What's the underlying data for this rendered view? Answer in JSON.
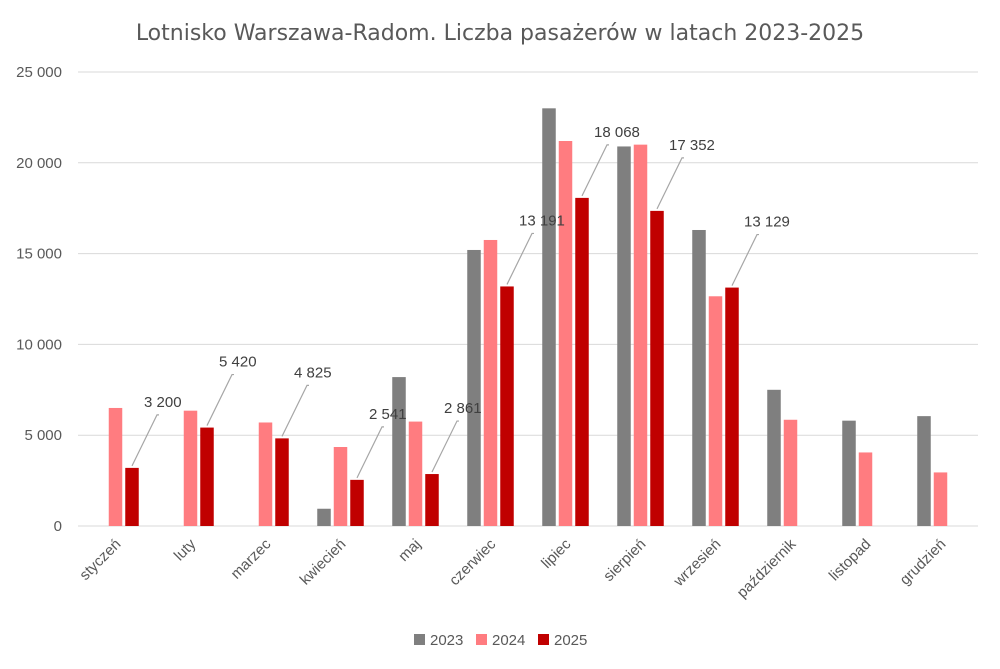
{
  "chart_data": {
    "type": "bar",
    "title": "Lotnisko Warszawa-Radom. Liczba pasażerów w latach 2023-2025",
    "xlabel": "",
    "ylabel": "",
    "ylim": [
      0,
      25000
    ],
    "yticks": [
      0,
      5000,
      10000,
      15000,
      20000,
      25000
    ],
    "ytick_labels": [
      "0",
      "5 000",
      "10 000",
      "15 000",
      "20 000",
      "25 000"
    ],
    "grid": true,
    "legend_position": "bottom",
    "categories": [
      "styczeń",
      "luty",
      "marzec",
      "kwiecień",
      "maj",
      "czerwiec",
      "lipiec",
      "sierpień",
      "wrzesień",
      "październik",
      "listopad",
      "grudzień"
    ],
    "series": [
      {
        "name": "2023",
        "color": "#7f7f7f",
        "values": [
          null,
          null,
          null,
          950,
          8200,
          15200,
          23000,
          20900,
          16300,
          7500,
          5800,
          6050
        ]
      },
      {
        "name": "2024",
        "color": "#ff7c80",
        "values": [
          6500,
          6350,
          5700,
          4350,
          5750,
          15750,
          21200,
          21000,
          12650,
          5850,
          4050,
          2950
        ]
      },
      {
        "name": "2025",
        "color": "#c00000",
        "values": [
          3200,
          5420,
          4825,
          2541,
          2861,
          13191,
          18068,
          17352,
          13129,
          null,
          null,
          null
        ]
      }
    ],
    "data_labels": [
      {
        "category": "styczeń",
        "series": "2025",
        "text": "3 200"
      },
      {
        "category": "luty",
        "series": "2025",
        "text": "5 420"
      },
      {
        "category": "marzec",
        "series": "2025",
        "text": "4 825"
      },
      {
        "category": "kwiecień",
        "series": "2025",
        "text": "2 541"
      },
      {
        "category": "maj",
        "series": "2025",
        "text": "2 861"
      },
      {
        "category": "czerwiec",
        "series": "2025",
        "text": "13 191"
      },
      {
        "category": "lipiec",
        "series": "2025",
        "text": "18 068"
      },
      {
        "category": "sierpień",
        "series": "2025",
        "text": "17 352"
      },
      {
        "category": "wrzesień",
        "series": "2025",
        "text": "13 129"
      }
    ]
  }
}
